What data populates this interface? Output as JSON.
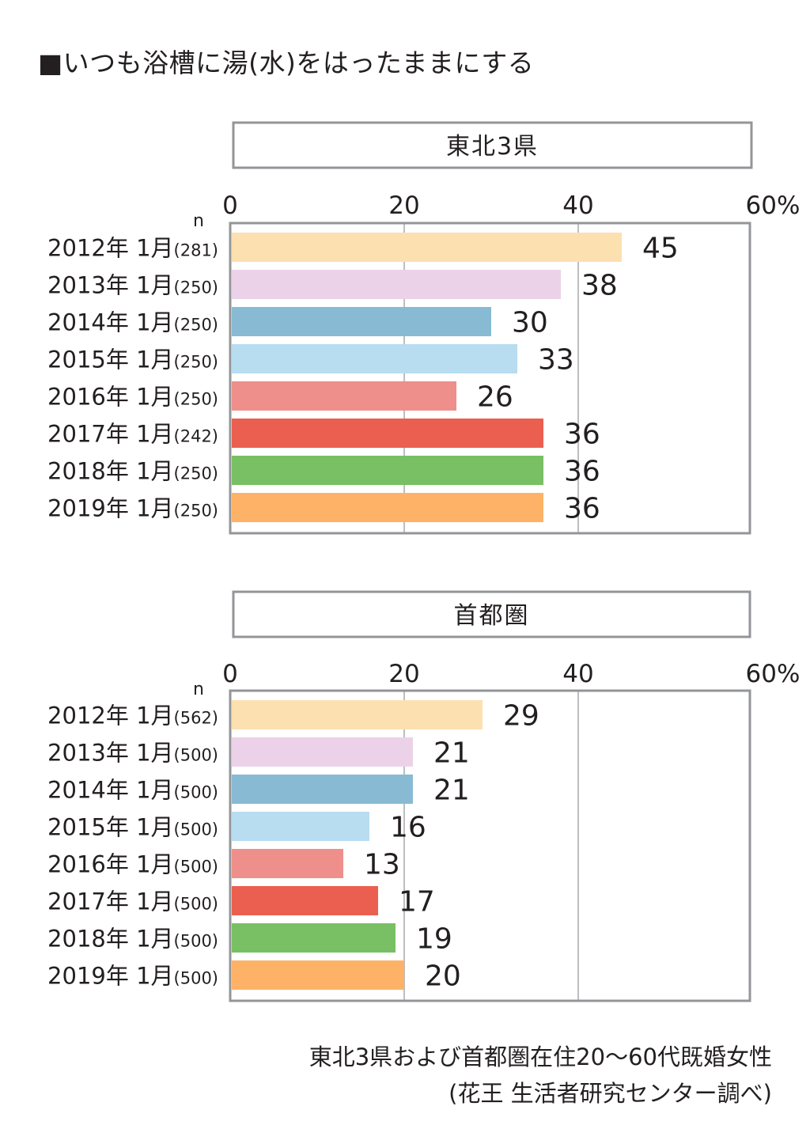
{
  "title": "■いつも浴槽に湯(水)をはったままにする",
  "footer": {
    "line1": "東北3県および首都圏在住20〜60代既婚女性",
    "line2": "(花王 生活者研究センター調べ)"
  },
  "colors": [
    "#fde0b0",
    "#ecd2e8",
    "#88bbd3",
    "#b8dcf0",
    "#ef8f8b",
    "#eb5f50",
    "#78c063",
    "#fdb267"
  ],
  "chart_data": [
    {
      "type": "bar",
      "orientation": "horizontal",
      "title": "東北3県",
      "categories": [
        "2012年 1月",
        "2013年 1月",
        "2014年 1月",
        "2015年 1月",
        "2016年 1月",
        "2017年 1月",
        "2018年 1月",
        "2019年 1月"
      ],
      "n": [
        "(281)",
        "(250)",
        "(250)",
        "(250)",
        "(250)",
        "(242)",
        "(250)",
        "(250)"
      ],
      "n_label": "n",
      "values": [
        45,
        38,
        30,
        33,
        26,
        36,
        36,
        36
      ],
      "xlim": [
        0,
        60
      ],
      "ticks": [
        "0",
        "20",
        "40",
        "60%"
      ],
      "grid": true
    },
    {
      "type": "bar",
      "orientation": "horizontal",
      "title": "首都圏",
      "categories": [
        "2012年 1月",
        "2013年 1月",
        "2014年 1月",
        "2015年 1月",
        "2016年 1月",
        "2017年 1月",
        "2018年 1月",
        "2019年 1月"
      ],
      "n": [
        "(562)",
        "(500)",
        "(500)",
        "(500)",
        "(500)",
        "(500)",
        "(500)",
        "(500)"
      ],
      "n_label": "n",
      "values": [
        29,
        21,
        21,
        16,
        13,
        17,
        19,
        20
      ],
      "xlim": [
        0,
        60
      ],
      "ticks": [
        "0",
        "20",
        "40",
        "60%"
      ],
      "grid": true
    }
  ]
}
